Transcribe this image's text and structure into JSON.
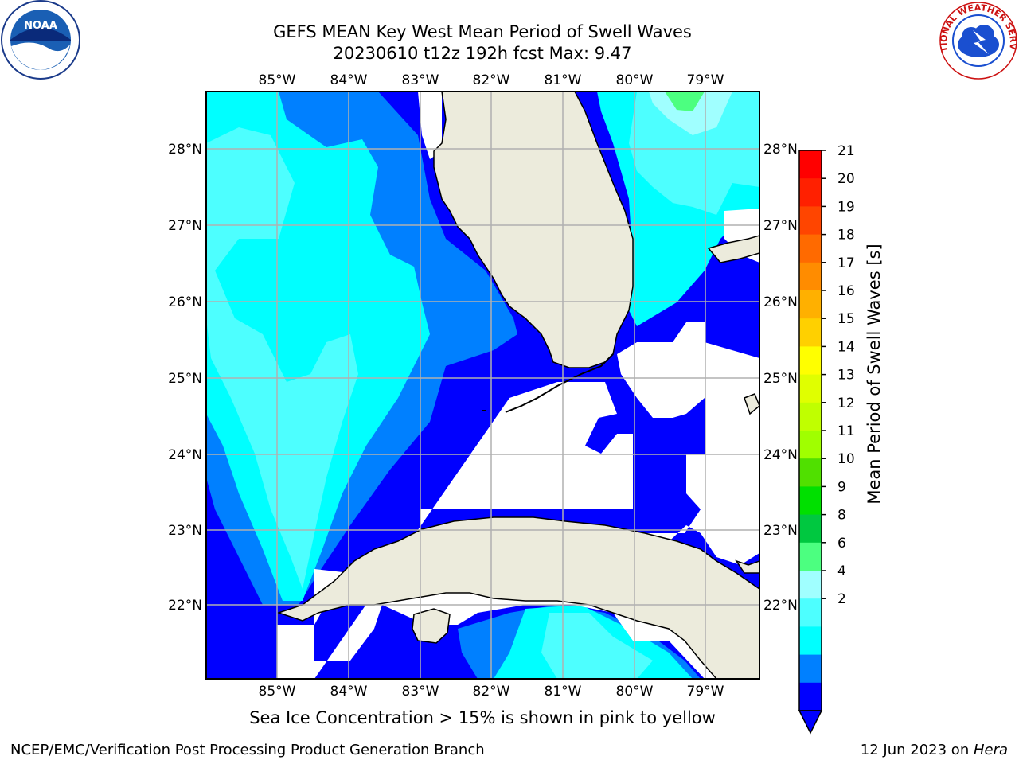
{
  "title": {
    "line1": "GEFS MEAN Key West Mean Period of Swell Waves",
    "line2": "20230610 t12z 192h fcst   Max: 9.47"
  },
  "map": {
    "lon_ticks": [
      "85°W",
      "84°W",
      "83°W",
      "82°W",
      "81°W",
      "80°W",
      "79°W"
    ],
    "lat_ticks": [
      "28°N",
      "27°N",
      "26°N",
      "25°N",
      "24°N",
      "23°N",
      "22°N"
    ],
    "colors": {
      "land": "#ecebdc",
      "ocean_2_4": "#0000ff",
      "ocean_4_6": "#0080ff",
      "ocean_6_7": "#00ffff",
      "ocean_7_8": "#4dffff",
      "ocean_8_9": "#a0ffff",
      "ocean_9_10": "#4cff80",
      "grid": "#b0b0b0"
    }
  },
  "colorbar": {
    "label": "Mean Period of Swell Waves [s]",
    "ticks": [
      "21",
      "20",
      "19",
      "18",
      "17",
      "16",
      "15",
      "14",
      "13",
      "12",
      "11",
      "10",
      "9",
      "8",
      "6",
      "4",
      "2"
    ],
    "colors": [
      "#ff0000",
      "#ff2000",
      "#ff4500",
      "#ff6a00",
      "#ff8c00",
      "#ffb000",
      "#ffd000",
      "#ffff00",
      "#e0ff00",
      "#c0ff00",
      "#a0ff00",
      "#50e000",
      "#00e000",
      "#00c840",
      "#4cff80",
      "#a0ffff",
      "#4dffff",
      "#00ffff",
      "#0080ff",
      "#0000ff"
    ]
  },
  "logos": {
    "noaa": "NOAA",
    "nws": "NATIONAL WEATHER SERVICE"
  },
  "note": "Sea Ice Concentration > 15% is shown in pink to yellow",
  "footer": {
    "left": "NCEP/EMC/Verification Post Processing Product Generation Branch",
    "right_prefix": "12 Jun 2023 on ",
    "right_host": "Hera"
  }
}
